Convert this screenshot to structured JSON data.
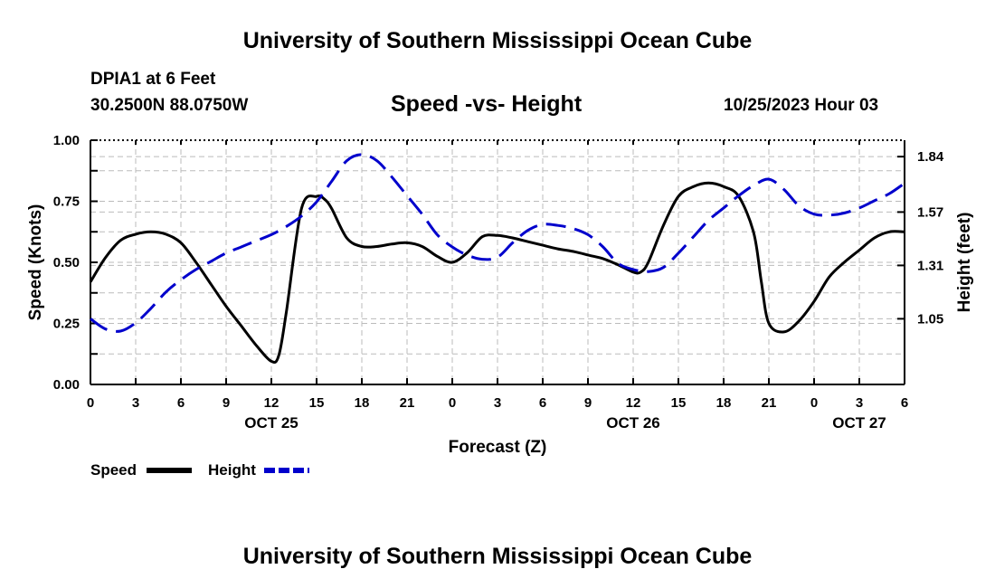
{
  "header": {
    "title": "University of Southern Mississippi Ocean Cube",
    "station_name": "DPIA1 at 6 Feet",
    "station_coords": "30.2500N  88.0750W",
    "chart_title": "Speed -vs- Height",
    "timestamp": "10/25/2023 Hour 03"
  },
  "footer": {
    "title": "University of Southern Mississippi Ocean Cube"
  },
  "colors": {
    "speed": "#000000",
    "height": "#0000cc",
    "grid": "#bbbbbb"
  },
  "chart_data": {
    "type": "line",
    "title": "Speed -vs- Height",
    "xlabel": "Forecast (Z)",
    "ylabel": "Speed (Knots)",
    "y2label": "Height (feet)",
    "xlim": [
      0,
      54
    ],
    "ylim": [
      0,
      1
    ],
    "y2lim": [
      0.73,
      1.92
    ],
    "grid": true,
    "legend_position": "bottom-left",
    "x_ticks": [
      0,
      3,
      6,
      9,
      12,
      15,
      18,
      21,
      24,
      27,
      30,
      33,
      36,
      39,
      42,
      45,
      48,
      51,
      54
    ],
    "x_tick_labels": [
      "0",
      "3",
      "6",
      "9",
      "12",
      "15",
      "18",
      "21",
      "0",
      "3",
      "6",
      "9",
      "12",
      "15",
      "18",
      "21",
      "0",
      "3",
      "6"
    ],
    "date_labels": [
      {
        "x": 12,
        "label": "OCT 25"
      },
      {
        "x": 36,
        "label": "OCT 26"
      },
      {
        "x": 51,
        "label": "OCT 27"
      }
    ],
    "y_ticks": [
      0,
      0.25,
      0.5,
      0.75,
      1.0
    ],
    "y_tick_labels": [
      "0.00",
      "0.25",
      "0.50",
      "0.75",
      "1.00"
    ],
    "y2_ticks": [
      1.05,
      1.31,
      1.57,
      1.84
    ],
    "y2_tick_labels": [
      "1.05",
      "1.31",
      "1.57",
      "1.84"
    ],
    "series": [
      {
        "name": "Speed",
        "axis": "left",
        "style": "solid",
        "x": [
          0,
          1,
          2,
          3,
          4,
          5,
          6,
          7,
          8,
          9,
          10,
          11,
          12,
          12.5,
          13,
          14,
          15,
          15.5,
          16,
          17,
          18,
          19,
          20,
          21,
          22,
          23,
          24,
          25,
          26,
          27,
          28,
          29,
          30,
          31,
          32,
          33,
          34,
          35,
          36,
          36.5,
          37,
          38,
          39,
          40,
          41,
          42,
          43,
          44,
          44.5,
          45,
          46,
          47,
          48,
          49,
          50,
          51,
          52,
          53,
          54
        ],
        "values": [
          0.42,
          0.52,
          0.59,
          0.615,
          0.625,
          0.615,
          0.58,
          0.5,
          0.41,
          0.32,
          0.24,
          0.16,
          0.095,
          0.12,
          0.3,
          0.72,
          0.77,
          0.76,
          0.72,
          0.6,
          0.565,
          0.565,
          0.575,
          0.58,
          0.565,
          0.525,
          0.5,
          0.54,
          0.605,
          0.61,
          0.6,
          0.585,
          0.57,
          0.555,
          0.545,
          0.53,
          0.515,
          0.49,
          0.46,
          0.46,
          0.5,
          0.65,
          0.77,
          0.81,
          0.825,
          0.81,
          0.77,
          0.62,
          0.42,
          0.25,
          0.215,
          0.26,
          0.34,
          0.44,
          0.5,
          0.55,
          0.6,
          0.625,
          0.625
        ]
      },
      {
        "name": "Height",
        "axis": "right",
        "style": "dashed",
        "x": [
          0,
          1,
          2,
          3,
          4,
          5,
          6,
          7,
          8,
          9,
          10,
          11,
          12,
          13,
          14,
          15,
          16,
          17,
          18,
          19,
          20,
          21,
          22,
          23,
          24,
          25,
          26,
          27,
          28,
          29,
          30,
          31,
          32,
          33,
          34,
          35,
          36,
          37,
          38,
          39,
          40,
          41,
          42,
          43,
          44,
          45,
          46,
          47,
          48,
          49,
          50,
          51,
          52,
          53,
          54
        ],
        "values": [
          1.05,
          1.0,
          0.99,
          1.03,
          1.1,
          1.18,
          1.24,
          1.29,
          1.33,
          1.37,
          1.4,
          1.43,
          1.46,
          1.5,
          1.55,
          1.62,
          1.72,
          1.82,
          1.85,
          1.82,
          1.74,
          1.65,
          1.56,
          1.46,
          1.4,
          1.36,
          1.34,
          1.35,
          1.42,
          1.48,
          1.51,
          1.505,
          1.49,
          1.46,
          1.4,
          1.32,
          1.29,
          1.28,
          1.3,
          1.37,
          1.45,
          1.53,
          1.59,
          1.65,
          1.7,
          1.73,
          1.68,
          1.6,
          1.56,
          1.555,
          1.565,
          1.59,
          1.625,
          1.66,
          1.71
        ]
      }
    ]
  }
}
